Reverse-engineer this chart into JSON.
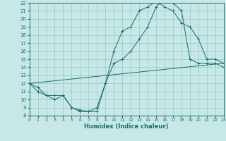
{
  "xlabel": "Humidex (Indice chaleur)",
  "xlim": [
    0,
    23
  ],
  "ylim": [
    8,
    22
  ],
  "xticks": [
    0,
    1,
    2,
    3,
    4,
    5,
    6,
    7,
    8,
    9,
    10,
    11,
    12,
    13,
    14,
    15,
    16,
    17,
    18,
    19,
    20,
    21,
    22,
    23
  ],
  "yticks": [
    8,
    9,
    10,
    11,
    12,
    13,
    14,
    15,
    16,
    17,
    18,
    19,
    20,
    21,
    22
  ],
  "bg_color": "#c8e8e8",
  "grid_color": "#96c8c8",
  "line_color": "#1a6b6b",
  "curve1_x": [
    0,
    1,
    2,
    3,
    4,
    5,
    6,
    7,
    8,
    9,
    10,
    11,
    12,
    13,
    14,
    15,
    16,
    17,
    18,
    19,
    20,
    21,
    22,
    23
  ],
  "curve1_y": [
    12.0,
    11.5,
    10.5,
    10.5,
    10.5,
    9.0,
    8.7,
    8.5,
    8.5,
    12.0,
    16.0,
    18.5,
    19.0,
    21.0,
    21.5,
    22.2,
    21.5,
    21.0,
    19.5,
    19.0,
    17.5,
    15.0,
    15.0,
    14.5
  ],
  "curve2_x": [
    0,
    1,
    2,
    3,
    4,
    5,
    6,
    7,
    8,
    9,
    10,
    11,
    12,
    13,
    14,
    15,
    16,
    17,
    18,
    19,
    20,
    21,
    22,
    23
  ],
  "curve2_y": [
    12.0,
    11.0,
    10.5,
    10.0,
    10.5,
    9.0,
    8.5,
    8.5,
    9.0,
    12.0,
    14.5,
    15.0,
    16.0,
    17.5,
    19.0,
    21.5,
    22.5,
    22.0,
    21.0,
    15.0,
    14.5,
    14.5,
    14.5,
    14.0
  ],
  "curve3_x": [
    0,
    23
  ],
  "curve3_y": [
    12.0,
    14.5
  ],
  "marker_style": "+",
  "linewidth": 0.7,
  "markersize": 2.5
}
